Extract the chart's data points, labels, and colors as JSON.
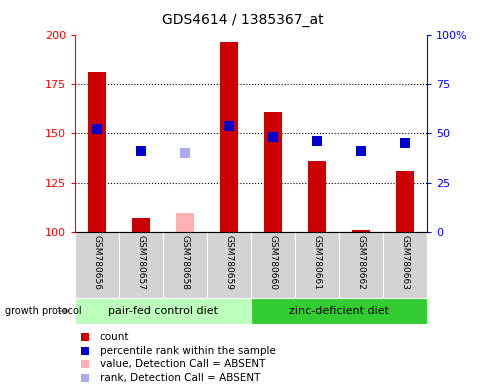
{
  "title": "GDS4614 / 1385367_at",
  "samples": [
    "GSM780656",
    "GSM780657",
    "GSM780658",
    "GSM780659",
    "GSM780660",
    "GSM780661",
    "GSM780662",
    "GSM780663"
  ],
  "count_values": [
    181,
    107,
    null,
    196,
    161,
    136,
    101,
    131
  ],
  "count_absent_values": [
    null,
    null,
    110,
    null,
    null,
    null,
    null,
    null
  ],
  "rank_values": [
    152,
    141,
    null,
    154,
    148,
    146,
    141,
    145
  ],
  "rank_absent_values": [
    null,
    null,
    140,
    null,
    null,
    null,
    null,
    null
  ],
  "ylim_left": [
    100,
    200
  ],
  "ylim_right": [
    0,
    100
  ],
  "yticks_left": [
    100,
    125,
    150,
    175,
    200
  ],
  "yticks_right": [
    0,
    25,
    50,
    75,
    100
  ],
  "bar_color": "#cc0000",
  "bar_absent_color": "#ffb0b0",
  "rank_color": "#0000cc",
  "rank_absent_color": "#aaaaee",
  "group_control": {
    "label": "pair-fed control diet",
    "start": 0,
    "end": 3,
    "color": "#bbffbb"
  },
  "group_zinc": {
    "label": "zinc-deficient diet",
    "start": 4,
    "end": 7,
    "color": "#33cc33"
  },
  "group_protocol_label": "growth protocol",
  "legend_items": [
    {
      "label": "count",
      "color": "#cc0000",
      "type": "square"
    },
    {
      "label": "percentile rank within the sample",
      "color": "#0000cc",
      "type": "square"
    },
    {
      "label": "value, Detection Call = ABSENT",
      "color": "#ffb0b0",
      "type": "square"
    },
    {
      "label": "rank, Detection Call = ABSENT",
      "color": "#aaaaee",
      "type": "square"
    }
  ],
  "bar_width": 0.4,
  "rank_marker_size": 55,
  "hgrid_values": [
    125,
    150,
    175
  ],
  "plot_bg": "#ffffff",
  "fig_bg": "#ffffff"
}
